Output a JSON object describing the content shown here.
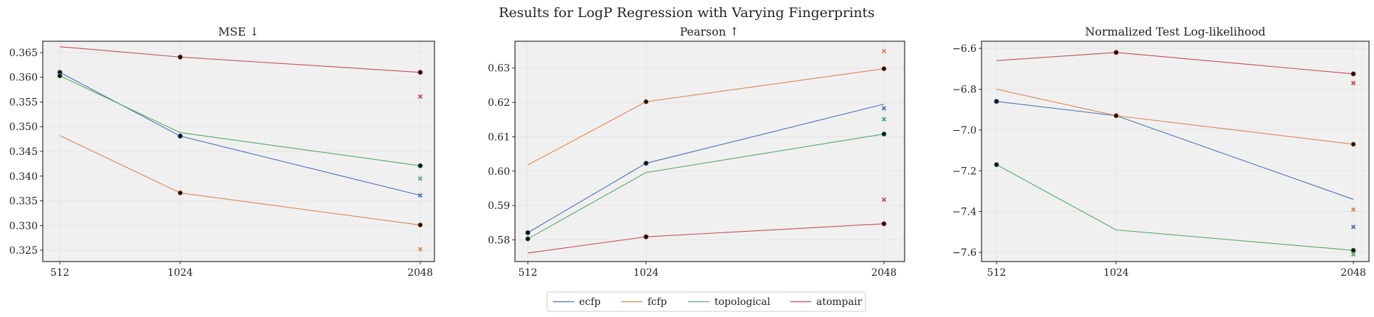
{
  "figure": {
    "title": "Results for LogP Regression with Varying Fingerprints"
  },
  "colors": {
    "ecfp": "#4c72b0",
    "fcfp": "#dd8452",
    "topological": "#55a868",
    "atompair": "#c44e52",
    "marker_point": "#111111",
    "panel_bg": "#f0f0f0"
  },
  "legend": {
    "placement": "bottom-center",
    "entries": [
      "ecfp",
      "fcfp",
      "topological",
      "atompair"
    ]
  },
  "chart_data": [
    {
      "type": "line",
      "title": "MSE ↓",
      "xlabel": "",
      "ylabel": "",
      "x": [
        512,
        1024,
        2048
      ],
      "x_tick_labels": [
        "512",
        "1024",
        "2048"
      ],
      "ylim": [
        0.3227,
        0.3673
      ],
      "y_ticks": [
        0.325,
        0.33,
        0.335,
        0.34,
        0.345,
        0.35,
        0.355,
        0.36,
        0.365
      ],
      "y_tick_labels": [
        "0.325",
        "0.330",
        "0.335",
        "0.340",
        "0.345",
        "0.350",
        "0.355",
        "0.360",
        "0.365"
      ],
      "grid": true,
      "series": [
        {
          "name": "ecfp",
          "values": [
            0.361,
            0.3481,
            0.3361
          ],
          "dots": [
            true,
            true,
            false
          ],
          "x_marker": 0.3361
        },
        {
          "name": "fcfp",
          "values": [
            0.3482,
            0.3366,
            0.3301
          ],
          "dots": [
            false,
            true,
            true
          ],
          "x_marker": 0.3252
        },
        {
          "name": "topological",
          "values": [
            0.3603,
            0.3488,
            0.3421
          ],
          "dots": [
            true,
            false,
            true
          ],
          "x_marker": 0.3395
        },
        {
          "name": "atompair",
          "values": [
            0.3662,
            0.3641,
            0.361
          ],
          "dots": [
            false,
            true,
            true
          ],
          "x_marker": 0.3561
        }
      ]
    },
    {
      "type": "line",
      "title": "Pearson ↑",
      "xlabel": "",
      "ylabel": "",
      "x": [
        512,
        1024,
        2048
      ],
      "x_tick_labels": [
        "512",
        "1024",
        "2048"
      ],
      "ylim": [
        0.5737,
        0.6378
      ],
      "y_ticks": [
        0.58,
        0.59,
        0.6,
        0.61,
        0.62,
        0.63
      ],
      "y_tick_labels": [
        "0.58",
        "0.59",
        "0.60",
        "0.61",
        "0.62",
        "0.63"
      ],
      "grid": true,
      "series": [
        {
          "name": "ecfp",
          "values": [
            0.5821,
            0.6023,
            0.6195
          ],
          "dots": [
            true,
            true,
            false
          ],
          "x_marker": 0.6183
        },
        {
          "name": "fcfp",
          "values": [
            0.6018,
            0.6202,
            0.6298
          ],
          "dots": [
            false,
            true,
            true
          ],
          "x_marker": 0.6349
        },
        {
          "name": "topological",
          "values": [
            0.5803,
            0.5996,
            0.6108
          ],
          "dots": [
            true,
            false,
            true
          ],
          "x_marker": 0.6151
        },
        {
          "name": "atompair",
          "values": [
            0.5762,
            0.5809,
            0.5847
          ],
          "dots": [
            false,
            true,
            true
          ],
          "x_marker": 0.5917
        }
      ]
    },
    {
      "type": "line",
      "title": "Normalized Test Log-likelihood",
      "xlabel": "",
      "ylabel": "",
      "x": [
        512,
        1024,
        2048
      ],
      "x_tick_labels": [
        "512",
        "1024",
        "2048"
      ],
      "ylim": [
        -7.645,
        -6.565
      ],
      "y_ticks": [
        -7.6,
        -7.4,
        -7.2,
        -7.0,
        -6.8,
        -6.6
      ],
      "y_tick_labels": [
        "−7.6",
        "−7.4",
        "−7.2",
        "−7.0",
        "−6.8",
        "−6.6"
      ],
      "grid": true,
      "series": [
        {
          "name": "ecfp",
          "values": [
            -6.86,
            -6.93,
            -7.34
          ],
          "dots": [
            true,
            true,
            false
          ],
          "x_marker": -7.475
        },
        {
          "name": "fcfp",
          "values": [
            -6.8,
            -6.93,
            -7.07
          ],
          "dots": [
            false,
            true,
            true
          ],
          "x_marker": -7.39
        },
        {
          "name": "topological",
          "values": [
            -7.17,
            -7.49,
            -7.59
          ],
          "dots": [
            true,
            false,
            true
          ],
          "x_marker": -7.61
        },
        {
          "name": "atompair",
          "values": [
            -6.66,
            -6.62,
            -6.725
          ],
          "dots": [
            false,
            true,
            true
          ],
          "x_marker": -6.77
        }
      ]
    }
  ]
}
